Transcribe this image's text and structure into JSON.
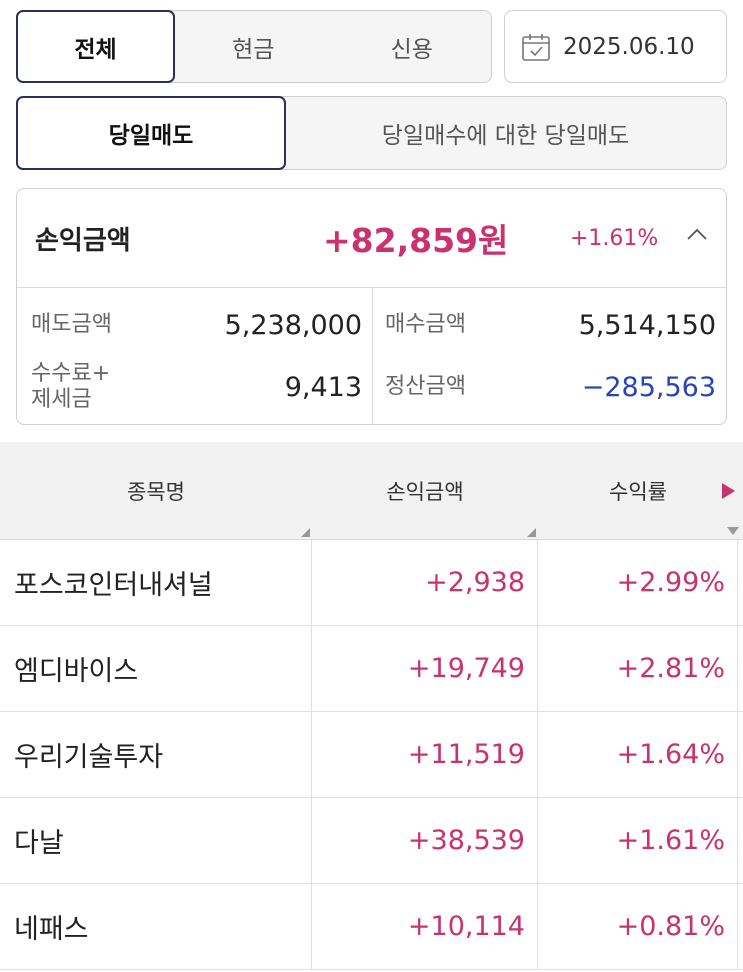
{
  "account_filter": {
    "options": [
      "전체",
      "현금",
      "신용"
    ],
    "selected": 0
  },
  "date": "2025.06.10",
  "trade_type": {
    "options": [
      "당일매도",
      "당일매수에 대한 당일매도"
    ],
    "selected": 0
  },
  "summary": {
    "label": "손익금액",
    "amount": "+82,859원",
    "percent": "+1.61%",
    "sell_label": "매도금액",
    "sell_value": "5,238,000",
    "buy_label": "매수금액",
    "buy_value": "5,514,150",
    "fee_label_line1": "수수료+",
    "fee_label_line2": "제세금",
    "fee_value": "9,413",
    "settle_label": "정산금액",
    "settle_value": "−285,563"
  },
  "table": {
    "headers": [
      "종목명",
      "손익금액",
      "수익률"
    ],
    "rows": [
      {
        "name": "포스코인터내셔널",
        "pnl": "+2,938",
        "rate": "+2.99%"
      },
      {
        "name": "엠디바이스",
        "pnl": "+19,749",
        "rate": "+2.81%"
      },
      {
        "name": "우리기술투자",
        "pnl": "+11,519",
        "rate": "+1.64%"
      },
      {
        "name": "다날",
        "pnl": "+38,539",
        "rate": "+1.61%"
      },
      {
        "name": "네패스",
        "pnl": "+10,114",
        "rate": "+0.81%"
      }
    ]
  },
  "colors": {
    "positive": "#c8326e",
    "negative": "#2845b8",
    "active_border": "#2a2f5c"
  },
  "icons": {
    "date": "calendar-icon",
    "collapse": "chevron-up-icon",
    "scroll": "play-arrow-icon"
  }
}
